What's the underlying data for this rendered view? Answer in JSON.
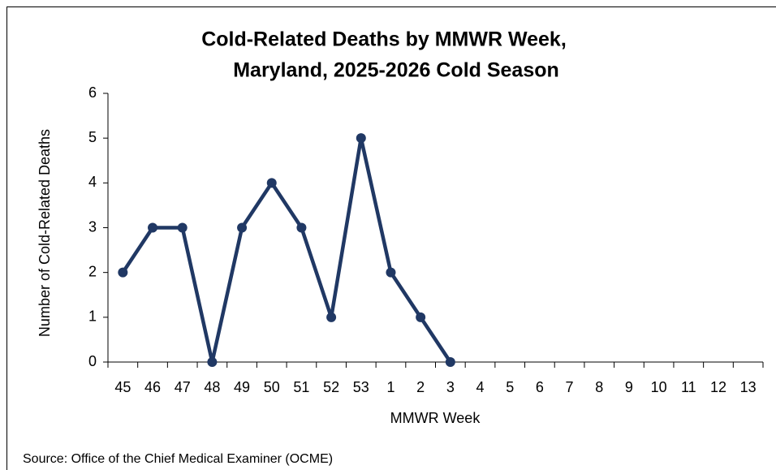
{
  "chart_data": {
    "type": "line",
    "title": [
      "Cold-Related Deaths by MMWR Week,",
      "Maryland, 2025-2026 Cold Season"
    ],
    "x_label": "MMWR Week",
    "y_label": "Number of Cold-Related Deaths",
    "categories": [
      "45",
      "46",
      "47",
      "48",
      "49",
      "50",
      "51",
      "52",
      "53",
      "1",
      "2",
      "3",
      "4",
      "5",
      "6",
      "7",
      "8",
      "9",
      "10",
      "11",
      "12",
      "13"
    ],
    "series": [
      {
        "name": "Cold-Related Deaths",
        "color": "#203864",
        "values": [
          2,
          3,
          3,
          0,
          3,
          4,
          3,
          1,
          5,
          2,
          1,
          0,
          null,
          null,
          null,
          null,
          null,
          null,
          null,
          null,
          null,
          null
        ]
      }
    ],
    "ylim": [
      0,
      6
    ],
    "yticks": [
      0,
      1,
      2,
      3,
      4,
      5,
      6
    ],
    "grid": false,
    "source": "Source: Office of the Chief Medical Examiner (OCME)"
  }
}
